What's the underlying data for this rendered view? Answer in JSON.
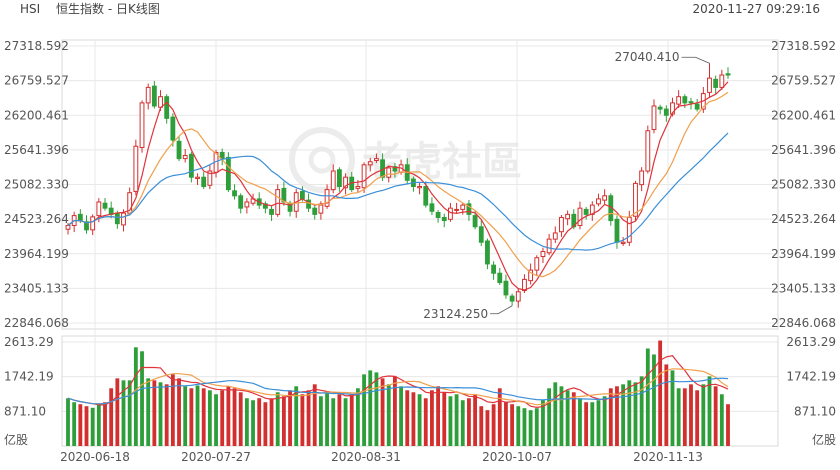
{
  "header": {
    "symbol": "HSI",
    "name": "恒生指数 - 日K线图",
    "timestamp": "2020-11-27 09:29:16"
  },
  "watermark": "老虎社區",
  "colors": {
    "up": "#d32f2f",
    "down": "#2e9e3a",
    "ma5": "#e0333a",
    "ma10": "#f0a04b",
    "ma20": "#3a8fd8",
    "grid": "#e8e8e8"
  },
  "chart_data": {
    "type": "candlestick",
    "price_axis": {
      "ticks": [
        "27318.592",
        "26759.527",
        "26200.461",
        "25641.396",
        "25082.330",
        "24523.264",
        "23964.199",
        "23405.133",
        "22846.068"
      ],
      "min": 22846.068,
      "max": 27318.592
    },
    "volume_axis": {
      "ticks": [
        "2613.29",
        "1742.19",
        "871.10"
      ],
      "unit": "亿股",
      "max": 2613.29
    },
    "x_ticks": [
      "2020-06-18",
      "2020-07-27",
      "2020-08-31",
      "2020-10-07",
      "2020-11-13"
    ],
    "annotations": [
      {
        "text": "27040.410",
        "type": "high"
      },
      {
        "text": "23124.250",
        "type": "low"
      }
    ],
    "candles_close": [
      24420,
      24580,
      24500,
      24350,
      24560,
      24800,
      24700,
      24600,
      24450,
      24620,
      24950,
      25700,
      26400,
      26650,
      26350,
      26500,
      26150,
      25800,
      25500,
      25550,
      25200,
      25200,
      25050,
      25300,
      25600,
      25500,
      25000,
      24900,
      24700,
      24800,
      24850,
      24750,
      24700,
      24600,
      25000,
      24800,
      24650,
      24950,
      24850,
      24700,
      24600,
      24750,
      25000,
      25300,
      25050,
      25200,
      25000,
      25050,
      25400,
      25450,
      25500,
      25200,
      25350,
      25300,
      25400,
      25150,
      25050,
      25050,
      24750,
      24650,
      24550,
      24500,
      24700,
      24680,
      24750,
      24600,
      24400,
      24150,
      23800,
      23650,
      23500,
      23300,
      23200,
      23350,
      23550,
      23700,
      23900,
      24000,
      24200,
      24300,
      24550,
      24600,
      24400,
      24700,
      24600,
      24750,
      24850,
      24900,
      24500,
      24150,
      24150,
      24550,
      25100,
      25300,
      25950,
      26350,
      26300,
      26200,
      26400,
      26500,
      26400,
      26400,
      26300,
      26550,
      26800,
      26650,
      26850,
      26850
    ],
    "candles_volume": [
      1200,
      1100,
      1050,
      1000,
      960,
      1050,
      1100,
      1450,
      1700,
      1650,
      1650,
      2480,
      2380,
      1700,
      1650,
      1600,
      1550,
      1800,
      1700,
      1500,
      1450,
      1520,
      1450,
      1400,
      1300,
      1400,
      1500,
      1450,
      1350,
      1200,
      1150,
      1200,
      1100,
      1200,
      1350,
      1250,
      1400,
      1500,
      1300,
      1400,
      1550,
      1250,
      1350,
      1200,
      1300,
      1200,
      1300,
      1450,
      1800,
      1900,
      1850,
      1700,
      1550,
      1750,
      1500,
      1400,
      1350,
      1300,
      1200,
      1400,
      1500,
      1350,
      1250,
      1300,
      1150,
      1200,
      1300,
      1000,
      900,
      1050,
      1450,
      1100,
      1050,
      1000,
      950,
      900,
      950,
      1150,
      1450,
      1600,
      1500,
      1400,
      1350,
      1200,
      1100,
      1100,
      1150,
      1250,
      1450,
      1500,
      1550,
      1650,
      1600,
      1750,
      2450,
      2300,
      2650,
      2050,
      1900,
      1450,
      1450,
      1550,
      1400,
      1550,
      1750,
      1500,
      1300,
      1050
    ]
  }
}
